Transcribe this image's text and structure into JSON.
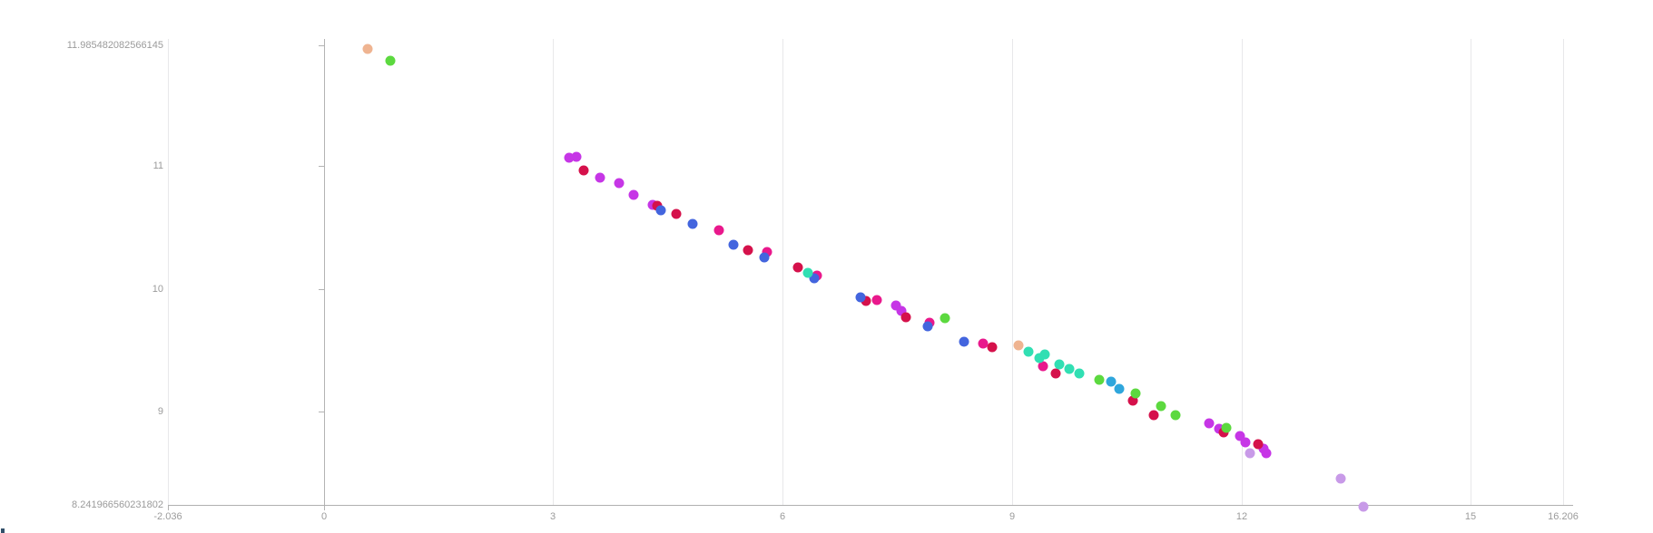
{
  "chart_data": {
    "type": "scatter",
    "title": "",
    "xlabel": "",
    "ylabel": "",
    "legend": "none",
    "grid": "vertical-only",
    "x_axis": {
      "min": -2.036,
      "max": 16.206,
      "tick_values": [
        -2.036,
        0,
        3,
        6,
        9,
        12,
        15,
        16.206
      ],
      "tick_labels": [
        "-2.036",
        "0",
        "3",
        "6",
        "9",
        "12",
        "15",
        "16.206"
      ]
    },
    "y_axis": {
      "min": 8.241966560231802,
      "max": 11.985482082566145,
      "tick_values": [
        11.985482082566145,
        11,
        10,
        9,
        8.241966560231802
      ],
      "tick_labels": [
        "11.985482082566145",
        "11",
        "10",
        "9",
        "8.241966560231802"
      ]
    },
    "series": [
      {
        "name": "magenta",
        "color": "#c636e6",
        "points": [
          [
            3.21,
            11.07
          ],
          [
            3.3,
            11.08
          ],
          [
            3.61,
            10.91
          ],
          [
            3.86,
            10.86
          ],
          [
            4.05,
            10.77
          ],
          [
            4.3,
            10.69
          ],
          [
            7.48,
            9.87
          ],
          [
            7.55,
            9.82
          ],
          [
            11.58,
            8.91
          ],
          [
            11.71,
            8.86
          ],
          [
            11.98,
            8.8
          ],
          [
            12.05,
            8.75
          ],
          [
            12.29,
            8.7
          ],
          [
            12.32,
            8.66
          ]
        ]
      },
      {
        "name": "deep-pink",
        "color": "#e9188c",
        "points": [
          [
            5.17,
            10.48
          ],
          [
            5.8,
            10.3
          ],
          [
            6.45,
            10.11
          ],
          [
            7.23,
            9.91
          ],
          [
            7.92,
            9.73
          ],
          [
            8.62,
            9.56
          ],
          [
            9.4,
            9.37
          ]
        ]
      },
      {
        "name": "crimson",
        "color": "#d5114b",
        "points": [
          [
            3.4,
            10.97
          ],
          [
            4.36,
            10.68
          ],
          [
            4.61,
            10.61
          ],
          [
            5.55,
            10.32
          ],
          [
            6.2,
            10.18
          ],
          [
            7.09,
            9.9
          ],
          [
            7.61,
            9.77
          ],
          [
            8.74,
            9.53
          ],
          [
            9.57,
            9.31
          ],
          [
            10.58,
            9.09
          ],
          [
            10.85,
            8.97
          ],
          [
            11.77,
            8.83
          ],
          [
            12.22,
            8.74
          ]
        ]
      },
      {
        "name": "royal-blue",
        "color": "#4365de",
        "points": [
          [
            4.41,
            10.64
          ],
          [
            4.82,
            10.53
          ],
          [
            5.36,
            10.36
          ],
          [
            5.76,
            10.26
          ],
          [
            6.41,
            10.09
          ],
          [
            7.02,
            9.93
          ],
          [
            7.9,
            9.7
          ],
          [
            8.37,
            9.57
          ]
        ]
      },
      {
        "name": "teal",
        "color": "#31dfb3",
        "points": [
          [
            6.33,
            10.13
          ],
          [
            9.21,
            9.49
          ],
          [
            9.36,
            9.44
          ],
          [
            9.43,
            9.47
          ],
          [
            9.62,
            9.39
          ],
          [
            9.75,
            9.35
          ],
          [
            9.88,
            9.31
          ]
        ]
      },
      {
        "name": "green",
        "color": "#5cd93f",
        "points": [
          [
            0.87,
            11.86
          ],
          [
            8.12,
            9.76
          ],
          [
            10.14,
            9.26
          ],
          [
            10.62,
            9.15
          ],
          [
            10.95,
            9.05
          ],
          [
            11.14,
            8.97
          ],
          [
            11.8,
            8.87
          ]
        ]
      },
      {
        "name": "sky-blue",
        "color": "#2fa6dc",
        "points": [
          [
            10.29,
            9.25
          ],
          [
            10.4,
            9.19
          ]
        ]
      },
      {
        "name": "peach",
        "color": "#efb491",
        "points": [
          [
            0.57,
            11.96
          ],
          [
            9.08,
            9.54
          ]
        ]
      },
      {
        "name": "lavender",
        "color": "#c89ae8",
        "points": [
          [
            12.11,
            8.66
          ],
          [
            13.3,
            8.46
          ],
          [
            13.59,
            8.23
          ]
        ]
      }
    ]
  }
}
